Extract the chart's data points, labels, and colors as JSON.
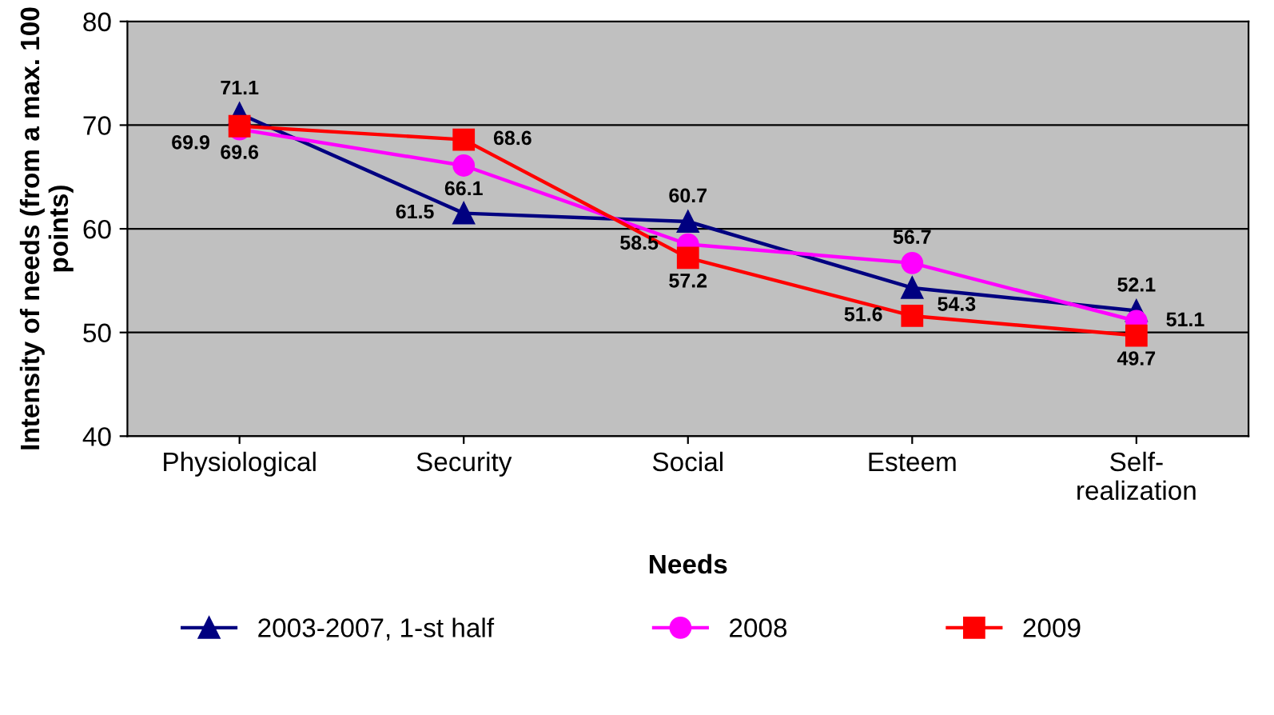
{
  "chart_data": {
    "type": "line",
    "xlabel": "Needs",
    "ylabel": "Intensity of needs (from a max. 100 points)",
    "categories": [
      "Physiological",
      "Security",
      "Social",
      "Esteem",
      "Self-\nrealization"
    ],
    "series": [
      {
        "name": "2003-2007, 1-st half",
        "color": "#000080",
        "marker": "triangle",
        "values": [
          71.1,
          61.5,
          60.7,
          54.3,
          52.1
        ]
      },
      {
        "name": "2008",
        "color": "#ff00ff",
        "marker": "circle",
        "values": [
          69.6,
          66.1,
          58.5,
          56.7,
          51.1
        ]
      },
      {
        "name": "2009",
        "color": "#ff0000",
        "marker": "square",
        "values": [
          69.9,
          68.6,
          57.2,
          51.6,
          49.7
        ]
      }
    ],
    "ylim": [
      40,
      80
    ],
    "yticks": [
      40,
      50,
      60,
      70,
      80
    ],
    "grid": "y",
    "legend": "bottom",
    "data_labels": true
  }
}
